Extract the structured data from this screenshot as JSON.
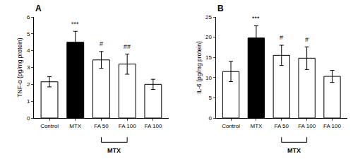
{
  "chart_data": [
    {
      "type": "bar",
      "title": "A",
      "ylabel": "TNF-α (pg/mg protein)",
      "categories": [
        "Control",
        "MTX",
        "FA 50",
        "FA 100",
        "FA 100"
      ],
      "values": [
        2.15,
        4.5,
        3.45,
        3.2,
        2.0
      ],
      "errors": [
        0.3,
        0.65,
        0.5,
        0.6,
        0.3
      ],
      "colors": [
        "white",
        "black",
        "white",
        "white",
        "white"
      ],
      "annotations": [
        null,
        "***",
        "#",
        "##",
        null
      ],
      "group_label": {
        "text": "MTX",
        "from": "FA 50",
        "to": "FA 100"
      },
      "ylim": [
        0,
        6
      ],
      "yticks": [
        0,
        1,
        2,
        3,
        4,
        5,
        6
      ],
      "grid": false
    },
    {
      "type": "bar",
      "title": "B",
      "ylabel": "IL-6 (pg/mg protein)",
      "categories": [
        "Control",
        "MTX",
        "FA 50",
        "FA 100",
        "FA 100"
      ],
      "values": [
        11.5,
        19.8,
        15.5,
        14.8,
        10.3
      ],
      "errors": [
        2.5,
        3.0,
        2.5,
        2.8,
        1.5
      ],
      "colors": [
        "white",
        "black",
        "white",
        "white",
        "white"
      ],
      "annotations": [
        null,
        "***",
        "#",
        "#",
        null
      ],
      "group_label": {
        "text": "MTX",
        "from": "FA 50",
        "to": "FA 100"
      },
      "ylim": [
        0,
        25
      ],
      "yticks": [
        0,
        5,
        10,
        15,
        20,
        25
      ],
      "grid": false
    }
  ]
}
